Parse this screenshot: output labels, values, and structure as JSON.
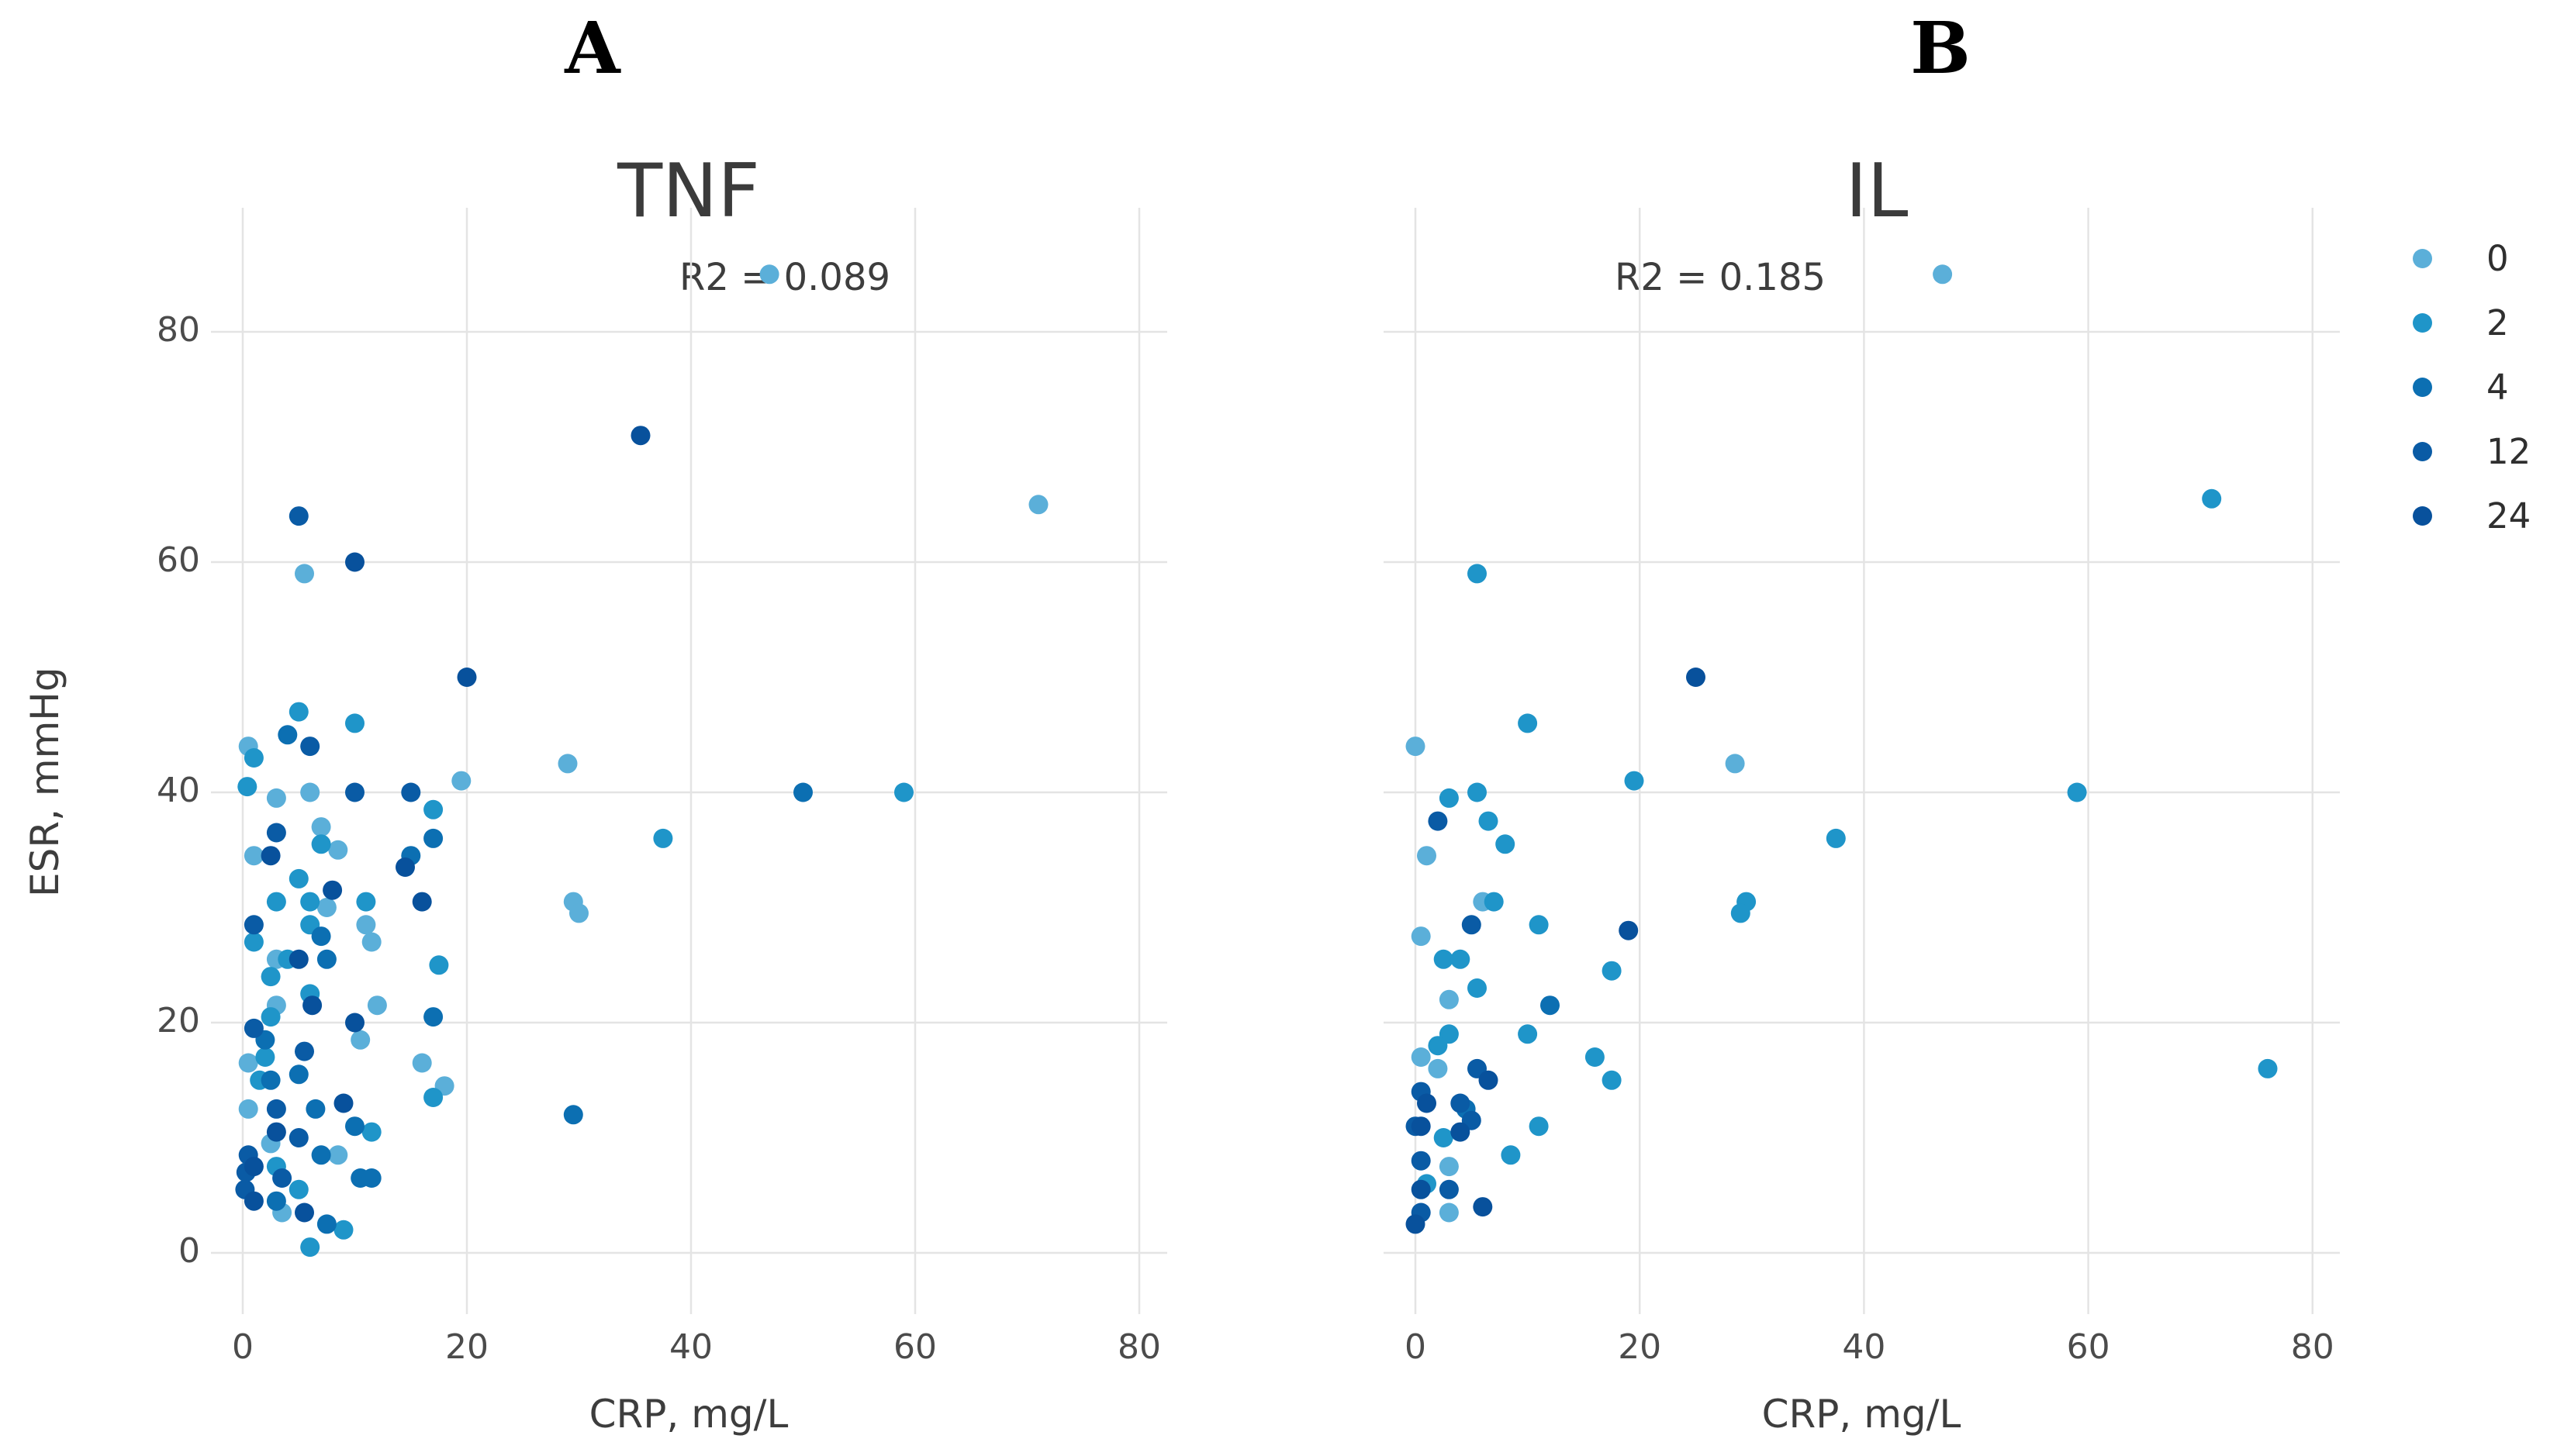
{
  "figure": {
    "background": "#ffffff"
  },
  "panel_labels": {
    "a": "A",
    "b": "B"
  },
  "y_axis": {
    "title": "ESR, mmHg",
    "ticks": [
      "80",
      "60",
      "40",
      "20",
      "0"
    ]
  },
  "legend": {
    "entries": [
      {
        "label": "0",
        "color": "#5BAFD9"
      },
      {
        "label": "2",
        "color": "#1F95C9"
      },
      {
        "label": "4",
        "color": "#0C6FB2"
      },
      {
        "label": "12",
        "color": "#0A5BA5"
      },
      {
        "label": "24",
        "color": "#08519C"
      }
    ]
  },
  "chart_data": [
    {
      "type": "scatter",
      "panel": "A",
      "title": "TNF",
      "annotation": "R2 = 0.089",
      "xlabel": "CRP, mg/L",
      "ylabel": "ESR, mmHg",
      "x_ticks": [
        0,
        20,
        40,
        60,
        80
      ],
      "y_ticks": [
        0,
        20,
        40,
        60,
        80
      ],
      "xlim": [
        -3,
        84
      ],
      "ylim": [
        -4,
        93
      ],
      "grid": true,
      "legend_position": "right",
      "series": [
        {
          "name": "0",
          "color": "#5BAFD9",
          "points": [
            [
              47,
              85
            ],
            [
              71,
              65
            ],
            [
              5.5,
              59
            ],
            [
              0.5,
              44
            ],
            [
              29,
              42.5
            ],
            [
              19.5,
              41
            ],
            [
              6,
              40
            ],
            [
              3,
              39.5
            ],
            [
              7,
              37
            ],
            [
              1,
              34.5
            ],
            [
              8.5,
              35
            ],
            [
              7.5,
              30
            ],
            [
              29.5,
              30.5
            ],
            [
              30,
              29.5
            ],
            [
              11,
              28.5
            ],
            [
              11.5,
              27
            ],
            [
              3,
              25.5
            ],
            [
              3,
              21.5
            ],
            [
              12,
              21.5
            ],
            [
              10.5,
              18.5
            ],
            [
              0.5,
              16.5
            ],
            [
              16,
              16.5
            ],
            [
              18,
              14.5
            ],
            [
              0.5,
              12.5
            ],
            [
              2.5,
              9.5
            ],
            [
              8.5,
              8.5
            ],
            [
              3.5,
              3.5
            ]
          ]
        },
        {
          "name": "2",
          "color": "#1F95C9",
          "points": [
            [
              59,
              40
            ],
            [
              37.5,
              36
            ],
            [
              5,
              47
            ],
            [
              10,
              46
            ],
            [
              1,
              43
            ],
            [
              0.4,
              40.5
            ],
            [
              17,
              38.5
            ],
            [
              7,
              35.5
            ],
            [
              5,
              32.5
            ],
            [
              6,
              30.5
            ],
            [
              3,
              30.5
            ],
            [
              11,
              30.5
            ],
            [
              1,
              27
            ],
            [
              6,
              28.5
            ],
            [
              4,
              25.5
            ],
            [
              17.5,
              25
            ],
            [
              2.5,
              24
            ],
            [
              6,
              22.5
            ],
            [
              2.5,
              20.5
            ],
            [
              2,
              17
            ],
            [
              1.5,
              15
            ],
            [
              17,
              13.5
            ],
            [
              11.5,
              10.5
            ],
            [
              3,
              7.5
            ],
            [
              5,
              5.5
            ],
            [
              9,
              2
            ],
            [
              6,
              0.5
            ]
          ]
        },
        {
          "name": "4",
          "color": "#0C6FB2",
          "points": [
            [
              50,
              40
            ],
            [
              29.5,
              12
            ],
            [
              4,
              45
            ],
            [
              17,
              36
            ],
            [
              15,
              34.5
            ],
            [
              7,
              27.5
            ],
            [
              7.5,
              25.5
            ],
            [
              17,
              20.5
            ],
            [
              2,
              18.5
            ],
            [
              2.5,
              15
            ],
            [
              5,
              15.5
            ],
            [
              6.5,
              12.5
            ],
            [
              10,
              11
            ],
            [
              7,
              8.5
            ],
            [
              10.5,
              6.5
            ],
            [
              11.5,
              6.5
            ],
            [
              3,
              4.5
            ],
            [
              7.5,
              2.5
            ]
          ]
        },
        {
          "name": "12",
          "color": "#0A5BA5",
          "points": [
            [
              5,
              64
            ],
            [
              6,
              44
            ],
            [
              10,
              40
            ],
            [
              15,
              40
            ],
            [
              3,
              36.5
            ],
            [
              1,
              28.5
            ],
            [
              1,
              19.5
            ],
            [
              5.5,
              17.5
            ],
            [
              3,
              12.5
            ],
            [
              5,
              10
            ],
            [
              0.5,
              8.5
            ],
            [
              0.3,
              7
            ],
            [
              3.5,
              6.5
            ],
            [
              0.2,
              5.5
            ]
          ]
        },
        {
          "name": "24",
          "color": "#08519C",
          "points": [
            [
              35.5,
              71
            ],
            [
              10,
              60
            ],
            [
              20,
              50
            ],
            [
              2.5,
              34.5
            ],
            [
              14.5,
              33.5
            ],
            [
              8,
              31.5
            ],
            [
              16,
              30.5
            ],
            [
              5,
              25.5
            ],
            [
              6.2,
              21.5
            ],
            [
              10,
              20
            ],
            [
              9,
              13
            ],
            [
              3,
              10.5
            ],
            [
              1,
              7.5
            ],
            [
              1,
              4.5
            ],
            [
              5.5,
              3.5
            ]
          ]
        }
      ]
    },
    {
      "type": "scatter",
      "panel": "B",
      "title": "IL",
      "annotation": "R2 = 0.185",
      "xlabel": "CRP, mg/L",
      "ylabel": "ESR, mmHg",
      "x_ticks": [
        0,
        20,
        40,
        60,
        80
      ],
      "y_ticks": [
        0,
        20,
        40,
        60,
        80
      ],
      "xlim": [
        -3,
        84
      ],
      "ylim": [
        -4,
        93
      ],
      "grid": true,
      "legend_position": "right",
      "series": [
        {
          "name": "0",
          "color": "#5BAFD9",
          "points": [
            [
              47,
              85
            ],
            [
              0,
              44
            ],
            [
              28.5,
              42.5
            ],
            [
              1,
              34.5
            ],
            [
              6,
              30.5
            ],
            [
              0.5,
              27.5
            ],
            [
              3,
              22
            ],
            [
              0.5,
              17
            ],
            [
              2,
              16
            ],
            [
              3,
              7.5
            ],
            [
              3,
              3.5
            ]
          ]
        },
        {
          "name": "2",
          "color": "#1F95C9",
          "points": [
            [
              71,
              65.5
            ],
            [
              59,
              40
            ],
            [
              76,
              16
            ],
            [
              37.5,
              36
            ],
            [
              5.5,
              59
            ],
            [
              10,
              46
            ],
            [
              19.5,
              41
            ],
            [
              5.5,
              40
            ],
            [
              3,
              39.5
            ],
            [
              6.5,
              37.5
            ],
            [
              8,
              35.5
            ],
            [
              7,
              30.5
            ],
            [
              29.5,
              30.5
            ],
            [
              29,
              29.5
            ],
            [
              11,
              28.5
            ],
            [
              2.5,
              25.5
            ],
            [
              4,
              25.5
            ],
            [
              17.5,
              24.5
            ],
            [
              5.5,
              23
            ],
            [
              3,
              19
            ],
            [
              10,
              19
            ],
            [
              2,
              18
            ],
            [
              16,
              17
            ],
            [
              17.5,
              15
            ],
            [
              2.5,
              10
            ],
            [
              11,
              11
            ],
            [
              8.5,
              8.5
            ],
            [
              1,
              6
            ]
          ]
        },
        {
          "name": "4",
          "color": "#0C6FB2",
          "points": [
            [
              12,
              21.5
            ],
            [
              4.5,
              12.5
            ]
          ]
        },
        {
          "name": "12",
          "color": "#0A5BA5",
          "points": [
            [
              2,
              37.5
            ],
            [
              5,
              28.5
            ],
            [
              5.5,
              16
            ],
            [
              0.5,
              14
            ],
            [
              4,
              13
            ],
            [
              5,
              11.5
            ],
            [
              0,
              11
            ],
            [
              0.5,
              8
            ],
            [
              3,
              5.5
            ],
            [
              0.5,
              3.5
            ]
          ]
        },
        {
          "name": "24",
          "color": "#08519C",
          "points": [
            [
              25,
              50
            ],
            [
              19,
              28
            ],
            [
              6.5,
              15
            ],
            [
              1,
              13
            ],
            [
              0.5,
              11
            ],
            [
              4,
              10.5
            ],
            [
              0.5,
              5.5
            ],
            [
              6,
              4
            ],
            [
              0,
              2.5
            ]
          ]
        }
      ]
    }
  ]
}
